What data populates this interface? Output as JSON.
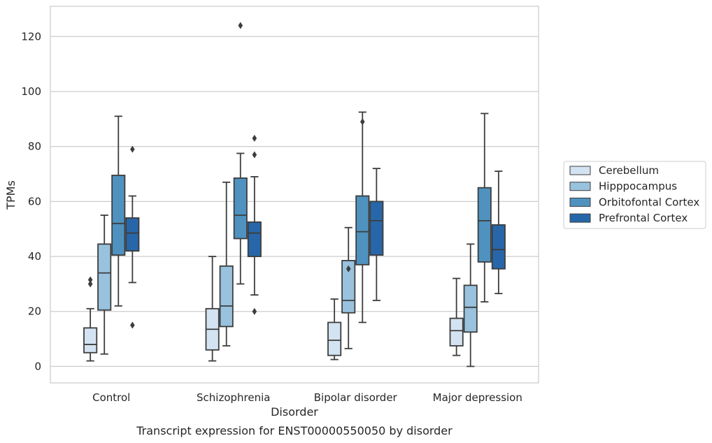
{
  "chart_data": {
    "type": "box",
    "xlabel": "Disorder",
    "ylabel": "TPMs",
    "caption": "Transcript expression for ENST00000550050 by disorder",
    "ylim": [
      -6,
      131
    ],
    "yticks": [
      0,
      20,
      40,
      60,
      80,
      100,
      120
    ],
    "grid": true,
    "legend_position": "right",
    "categories": [
      "Control",
      "Schizophrenia",
      "Bipolar disorder",
      "Major depression"
    ],
    "series": [
      {
        "name": "Cerebellum",
        "color": "#d3e3f1",
        "boxes": [
          {
            "whisker_low": 2,
            "q1": 5,
            "median": 8,
            "q3": 14,
            "whisker_high": 21,
            "outliers": [
              30,
              31.5
            ]
          },
          {
            "whisker_low": 2,
            "q1": 6,
            "median": 13.5,
            "q3": 21,
            "whisker_high": 40,
            "outliers": []
          },
          {
            "whisker_low": 2.5,
            "q1": 4,
            "median": 9.5,
            "q3": 16,
            "whisker_high": 24.5,
            "outliers": []
          },
          {
            "whisker_low": 4,
            "q1": 7.5,
            "median": 13,
            "q3": 17.5,
            "whisker_high": 32,
            "outliers": []
          }
        ]
      },
      {
        "name": "Hipppocampus",
        "color": "#98c2de",
        "boxes": [
          {
            "whisker_low": 4.5,
            "q1": 20.5,
            "median": 34,
            "q3": 44.5,
            "whisker_high": 55,
            "outliers": []
          },
          {
            "whisker_low": 7.5,
            "q1": 14.5,
            "median": 22,
            "q3": 36.5,
            "whisker_high": 67,
            "outliers": []
          },
          {
            "whisker_low": 6.5,
            "q1": 19.5,
            "median": 24,
            "q3": 38.5,
            "whisker_high": 50.5,
            "outliers": [
              35.5
            ]
          },
          {
            "whisker_low": 0,
            "q1": 12.5,
            "median": 21.5,
            "q3": 29.5,
            "whisker_high": 44.5,
            "outliers": []
          }
        ]
      },
      {
        "name": "Orbitofontal Cortex",
        "color": "#4f92c0",
        "boxes": [
          {
            "whisker_low": 22,
            "q1": 40.5,
            "median": 52,
            "q3": 69.5,
            "whisker_high": 91,
            "outliers": []
          },
          {
            "whisker_low": 30,
            "q1": 46.5,
            "median": 55,
            "q3": 68.5,
            "whisker_high": 77.5,
            "outliers": [
              124
            ]
          },
          {
            "whisker_low": 16,
            "q1": 37,
            "median": 49,
            "q3": 62,
            "whisker_high": 92.5,
            "outliers": [
              89
            ]
          },
          {
            "whisker_low": 23.5,
            "q1": 38,
            "median": 53,
            "q3": 65,
            "whisker_high": 92,
            "outliers": []
          }
        ]
      },
      {
        "name": "Prefrontal Cortex",
        "color": "#2767a9",
        "boxes": [
          {
            "whisker_low": 30.5,
            "q1": 42,
            "median": 48.5,
            "q3": 54,
            "whisker_high": 62,
            "outliers": [
              15,
              79
            ]
          },
          {
            "whisker_low": 26,
            "q1": 40,
            "median": 48.5,
            "q3": 52.5,
            "whisker_high": 69,
            "outliers": [
              20,
              77,
              83
            ]
          },
          {
            "whisker_low": 24,
            "q1": 40.5,
            "median": 53,
            "q3": 60,
            "whisker_high": 72,
            "outliers": []
          },
          {
            "whisker_low": 26.5,
            "q1": 35.5,
            "median": 42.5,
            "q3": 51.5,
            "whisker_high": 71,
            "outliers": []
          }
        ]
      }
    ]
  }
}
